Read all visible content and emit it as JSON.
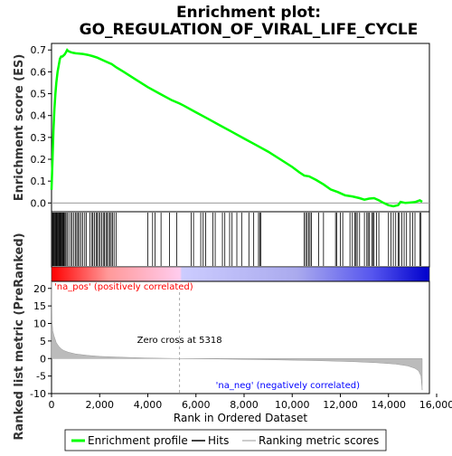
{
  "chart_data": {
    "type": "line",
    "title": "Enrichment plot:",
    "subtitle": "GO_REGULATION_OF_VIRAL_LIFE_CYCLE",
    "xlabel": "Rank in Ordered Dataset",
    "es_panel": {
      "ylabel": "Enrichment score (ES)",
      "ylim": [
        -0.04,
        0.73
      ],
      "yticks": [
        0.0,
        0.1,
        0.2,
        0.3,
        0.4,
        0.5,
        0.6,
        0.7
      ],
      "ytick_labels": [
        "0.0",
        "0.1",
        "0.2",
        "0.3",
        "0.4",
        "0.5",
        "0.6",
        "0.7"
      ],
      "series": [
        {
          "name": "Enrichment profile",
          "color": "#00ff00",
          "x": [
            0,
            40,
            80,
            120,
            160,
            200,
            250,
            300,
            350,
            400,
            450,
            500,
            550,
            600,
            650,
            700,
            800,
            900,
            1000,
            1100,
            1200,
            1300,
            1400,
            1500,
            1700,
            1900,
            2100,
            2300,
            2500,
            2700,
            3000,
            3500,
            4000,
            4500,
            5000,
            5318,
            5500,
            6000,
            6500,
            7000,
            7500,
            8000,
            8500,
            9000,
            9500,
            10000,
            10300,
            10500,
            10700,
            11000,
            11300,
            11600,
            11900,
            12200,
            12500,
            12800,
            13000,
            13200,
            13400,
            13600,
            13800,
            14000,
            14200,
            14400,
            14500,
            14700,
            14900,
            15100,
            15300,
            15400
          ],
          "y": [
            0.06,
            0.2,
            0.33,
            0.43,
            0.5,
            0.55,
            0.6,
            0.63,
            0.66,
            0.67,
            0.67,
            0.675,
            0.68,
            0.69,
            0.7,
            0.695,
            0.69,
            0.687,
            0.685,
            0.684,
            0.683,
            0.682,
            0.68,
            0.678,
            0.672,
            0.665,
            0.655,
            0.645,
            0.635,
            0.62,
            0.6,
            0.565,
            0.53,
            0.5,
            0.47,
            0.455,
            0.445,
            0.415,
            0.385,
            0.355,
            0.325,
            0.295,
            0.265,
            0.235,
            0.2,
            0.165,
            0.14,
            0.125,
            0.122,
            0.105,
            0.085,
            0.062,
            0.05,
            0.035,
            0.03,
            0.022,
            0.015,
            0.02,
            0.022,
            0.012,
            0.0,
            -0.01,
            -0.015,
            -0.01,
            0.005,
            0.0,
            0.002,
            0.004,
            0.012,
            0.005
          ]
        }
      ]
    },
    "hits": [
      40,
      70,
      100,
      130,
      160,
      190,
      220,
      250,
      280,
      310,
      340,
      370,
      400,
      430,
      460,
      490,
      520,
      560,
      600,
      650,
      720,
      800,
      860,
      930,
      1000,
      1050,
      1100,
      1160,
      1230,
      1300,
      1380,
      1440,
      1600,
      1680,
      1720,
      1780,
      1850,
      1900,
      1960,
      2020,
      2080,
      2150,
      2200,
      2260,
      2310,
      2370,
      2430,
      2480,
      2540,
      2600,
      2680,
      4000,
      4200,
      4300,
      4550,
      4900,
      5200,
      5800,
      5900,
      6200,
      6300,
      6400,
      6700,
      6800,
      7100,
      7200,
      7400,
      7500,
      7700,
      7900,
      8200,
      8400,
      8600,
      8650,
      8700,
      10500,
      10560,
      10620,
      10680,
      10740,
      10800,
      11100,
      11300,
      11800,
      11850,
      12000,
      12100,
      12400,
      12500,
      12600,
      12650,
      12700,
      12800,
      13000,
      13100,
      13150,
      13200,
      13300,
      13350,
      13400,
      13500,
      13600,
      14000,
      14100,
      14200,
      14300,
      14400,
      14450,
      14550,
      14650,
      14750,
      14900,
      15000,
      15100,
      15300,
      15350
    ],
    "metric_panel": {
      "ylabel": "Ranked list metric (PreRanked)",
      "ylim": [
        -10,
        22
      ],
      "yticks": [
        -10,
        -5,
        0,
        5,
        10,
        15,
        20
      ],
      "ytick_labels": [
        "-10",
        "-5",
        "0",
        "5",
        "10",
        "15",
        "20"
      ],
      "x": [
        0,
        20,
        50,
        100,
        150,
        200,
        300,
        400,
        500,
        700,
        1000,
        1500,
        2000,
        3000,
        4000,
        5318,
        7000,
        9000,
        11000,
        12500,
        13500,
        14300,
        14800,
        15100,
        15250,
        15350,
        15400
      ],
      "values": [
        22,
        11,
        8,
        6.5,
        5.5,
        4.5,
        3.5,
        2.8,
        2.3,
        1.8,
        1.3,
        0.9,
        0.6,
        0.35,
        0.15,
        0.0,
        -0.15,
        -0.35,
        -0.6,
        -0.9,
        -1.2,
        -1.6,
        -2.1,
        -2.8,
        -3.5,
        -5,
        -9
      ],
      "fill_color": "#bbbbbb",
      "zero_cross_label": "Zero cross at 5318",
      "zero_cross_x": 5318,
      "pos_label": "'na_pos' (positively correlated)",
      "neg_label": "'na_neg' (negatively correlated)",
      "pos_color": "#ff0000",
      "neg_color": "#0000ff"
    },
    "xlim": [
      0,
      15700
    ],
    "xticks": [
      0,
      2000,
      4000,
      6000,
      8000,
      10000,
      12000,
      14000,
      16000
    ],
    "xtick_labels": [
      "0",
      "2,000",
      "4,000",
      "6,000",
      "8,000",
      "10,000",
      "12,000",
      "14,000",
      "16,000"
    ],
    "n_total": 15400,
    "legend": {
      "placement": "bottom",
      "items": [
        {
          "label": "Enrichment profile",
          "color": "#00ff00"
        },
        {
          "label": "Hits",
          "color": "#000000"
        },
        {
          "label": "Ranking metric scores",
          "color": "#bbbbbb"
        }
      ]
    }
  }
}
